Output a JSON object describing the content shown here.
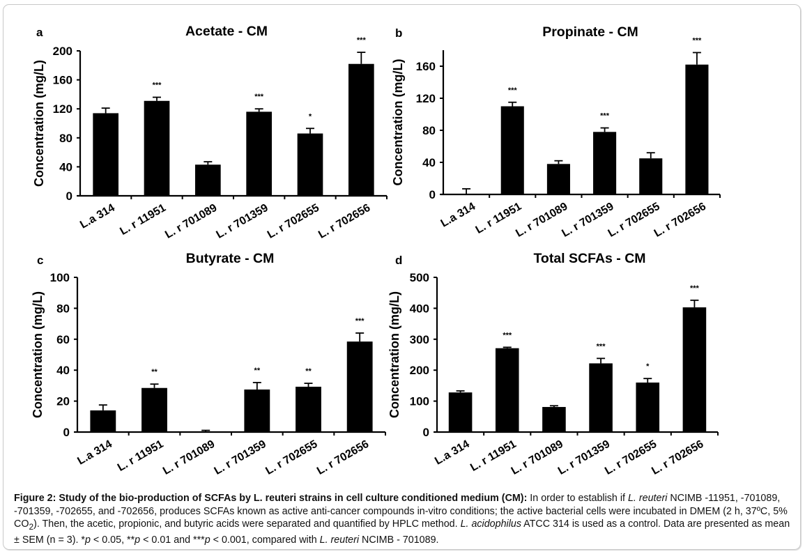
{
  "chart_data": [
    {
      "panel": "a",
      "type": "bar",
      "title": "Acetate - CM",
      "xlabel": "",
      "ylabel": "Concentration (mg/L)",
      "categories": [
        "L.a 314",
        "L. r 11951",
        "L. r 701089",
        "L. r 701359",
        "L. r 702655",
        "L. r 702656"
      ],
      "values": [
        114,
        131,
        43,
        116,
        86,
        182
      ],
      "errors": [
        7,
        5,
        4,
        4,
        7,
        16
      ],
      "significance": [
        "",
        "***",
        "",
        "***",
        "*",
        "***"
      ],
      "ylim": [
        0,
        200
      ],
      "yticks": [
        0,
        40,
        80,
        120,
        160,
        200
      ],
      "grid": false
    },
    {
      "panel": "b",
      "type": "bar",
      "title": "Propinate - CM",
      "xlabel": "",
      "ylabel": "Concentration (mg/L)",
      "categories": [
        "L.a 314",
        "L. r 11951",
        "L. r 701089",
        "L. r 701359",
        "L. r 702655",
        "L. r 702656"
      ],
      "values": [
        0,
        110,
        38,
        78,
        45,
        162
      ],
      "errors": [
        7,
        5,
        4,
        5,
        7,
        15
      ],
      "significance": [
        "",
        "***",
        "",
        "***",
        "",
        "***"
      ],
      "ylim": [
        0,
        180
      ],
      "yticks": [
        0,
        40,
        80,
        120,
        160
      ],
      "grid": false
    },
    {
      "panel": "c",
      "type": "bar",
      "title": "Butyrate - CM",
      "xlabel": "",
      "ylabel": "Concentration (mg/L)",
      "categories": [
        "L.a 314",
        "L. r 11951",
        "L. r 701089",
        "L. r 701359",
        "L. r 702655",
        "L. r 702656"
      ],
      "values": [
        14,
        28.5,
        0.3,
        27.5,
        29.3,
        58.5
      ],
      "errors": [
        3.5,
        2.5,
        0.8,
        4.5,
        2.2,
        5.5
      ],
      "significance": [
        "",
        "**",
        "",
        "**",
        "**",
        "***"
      ],
      "ylim": [
        0,
        100
      ],
      "yticks": [
        0,
        20,
        40,
        60,
        80,
        100
      ],
      "grid": false
    },
    {
      "panel": "d",
      "type": "bar",
      "title": "Total SCFAs - CM",
      "xlabel": "",
      "ylabel": "Concentration (mg/L)",
      "categories": [
        "L.a 314",
        "L. r 11951",
        "L. r 701089",
        "L. r 701359",
        "L. r 702655",
        "L. r 702656"
      ],
      "values": [
        128,
        271,
        81,
        222,
        160,
        403
      ],
      "errors": [
        5,
        3,
        4,
        16,
        13,
        23
      ],
      "significance": [
        "",
        "***",
        "",
        "***",
        "*",
        "***"
      ],
      "ylim": [
        0,
        500
      ],
      "yticks": [
        0,
        100,
        200,
        300,
        400,
        500
      ],
      "grid": false
    }
  ],
  "caption": {
    "bold_lead": "Figure 2: Study of the bio-production of SCFAs by L. reuteri strains in cell culture conditioned medium (CM):",
    "text_1": " In order to establish if ",
    "italic_1": "L. reuteri",
    "text_2": " NCIMB -11951, -701089, -701359, -702655, and -702656, produces SCFAs known as active anti-cancer compounds in-vitro conditions; the active bacterial cells were incubated in DMEM (2 h, 37ºC, 5% CO",
    "subscript": "2",
    "text_3": "). Then, the acetic, propionic, and butyric acids were separated and quantified by HPLC method. ",
    "italic_2": "L. acidophilus",
    "text_4": " ATCC 314 is used as a control. Data are presented as mean ± SEM (n = 3). *",
    "p1": "p",
    "text_5": " < 0.05, **",
    "p2": "p",
    "text_6": " < 0.01 and ***",
    "p3": "p",
    "text_7": " < 0.001, compared with ",
    "italic_3": "L. reuteri",
    "text_8": " NCIMB - 701089."
  },
  "colors": {
    "bar": "#000000",
    "frame_border": "#c8c8c8",
    "text": "#000000"
  }
}
